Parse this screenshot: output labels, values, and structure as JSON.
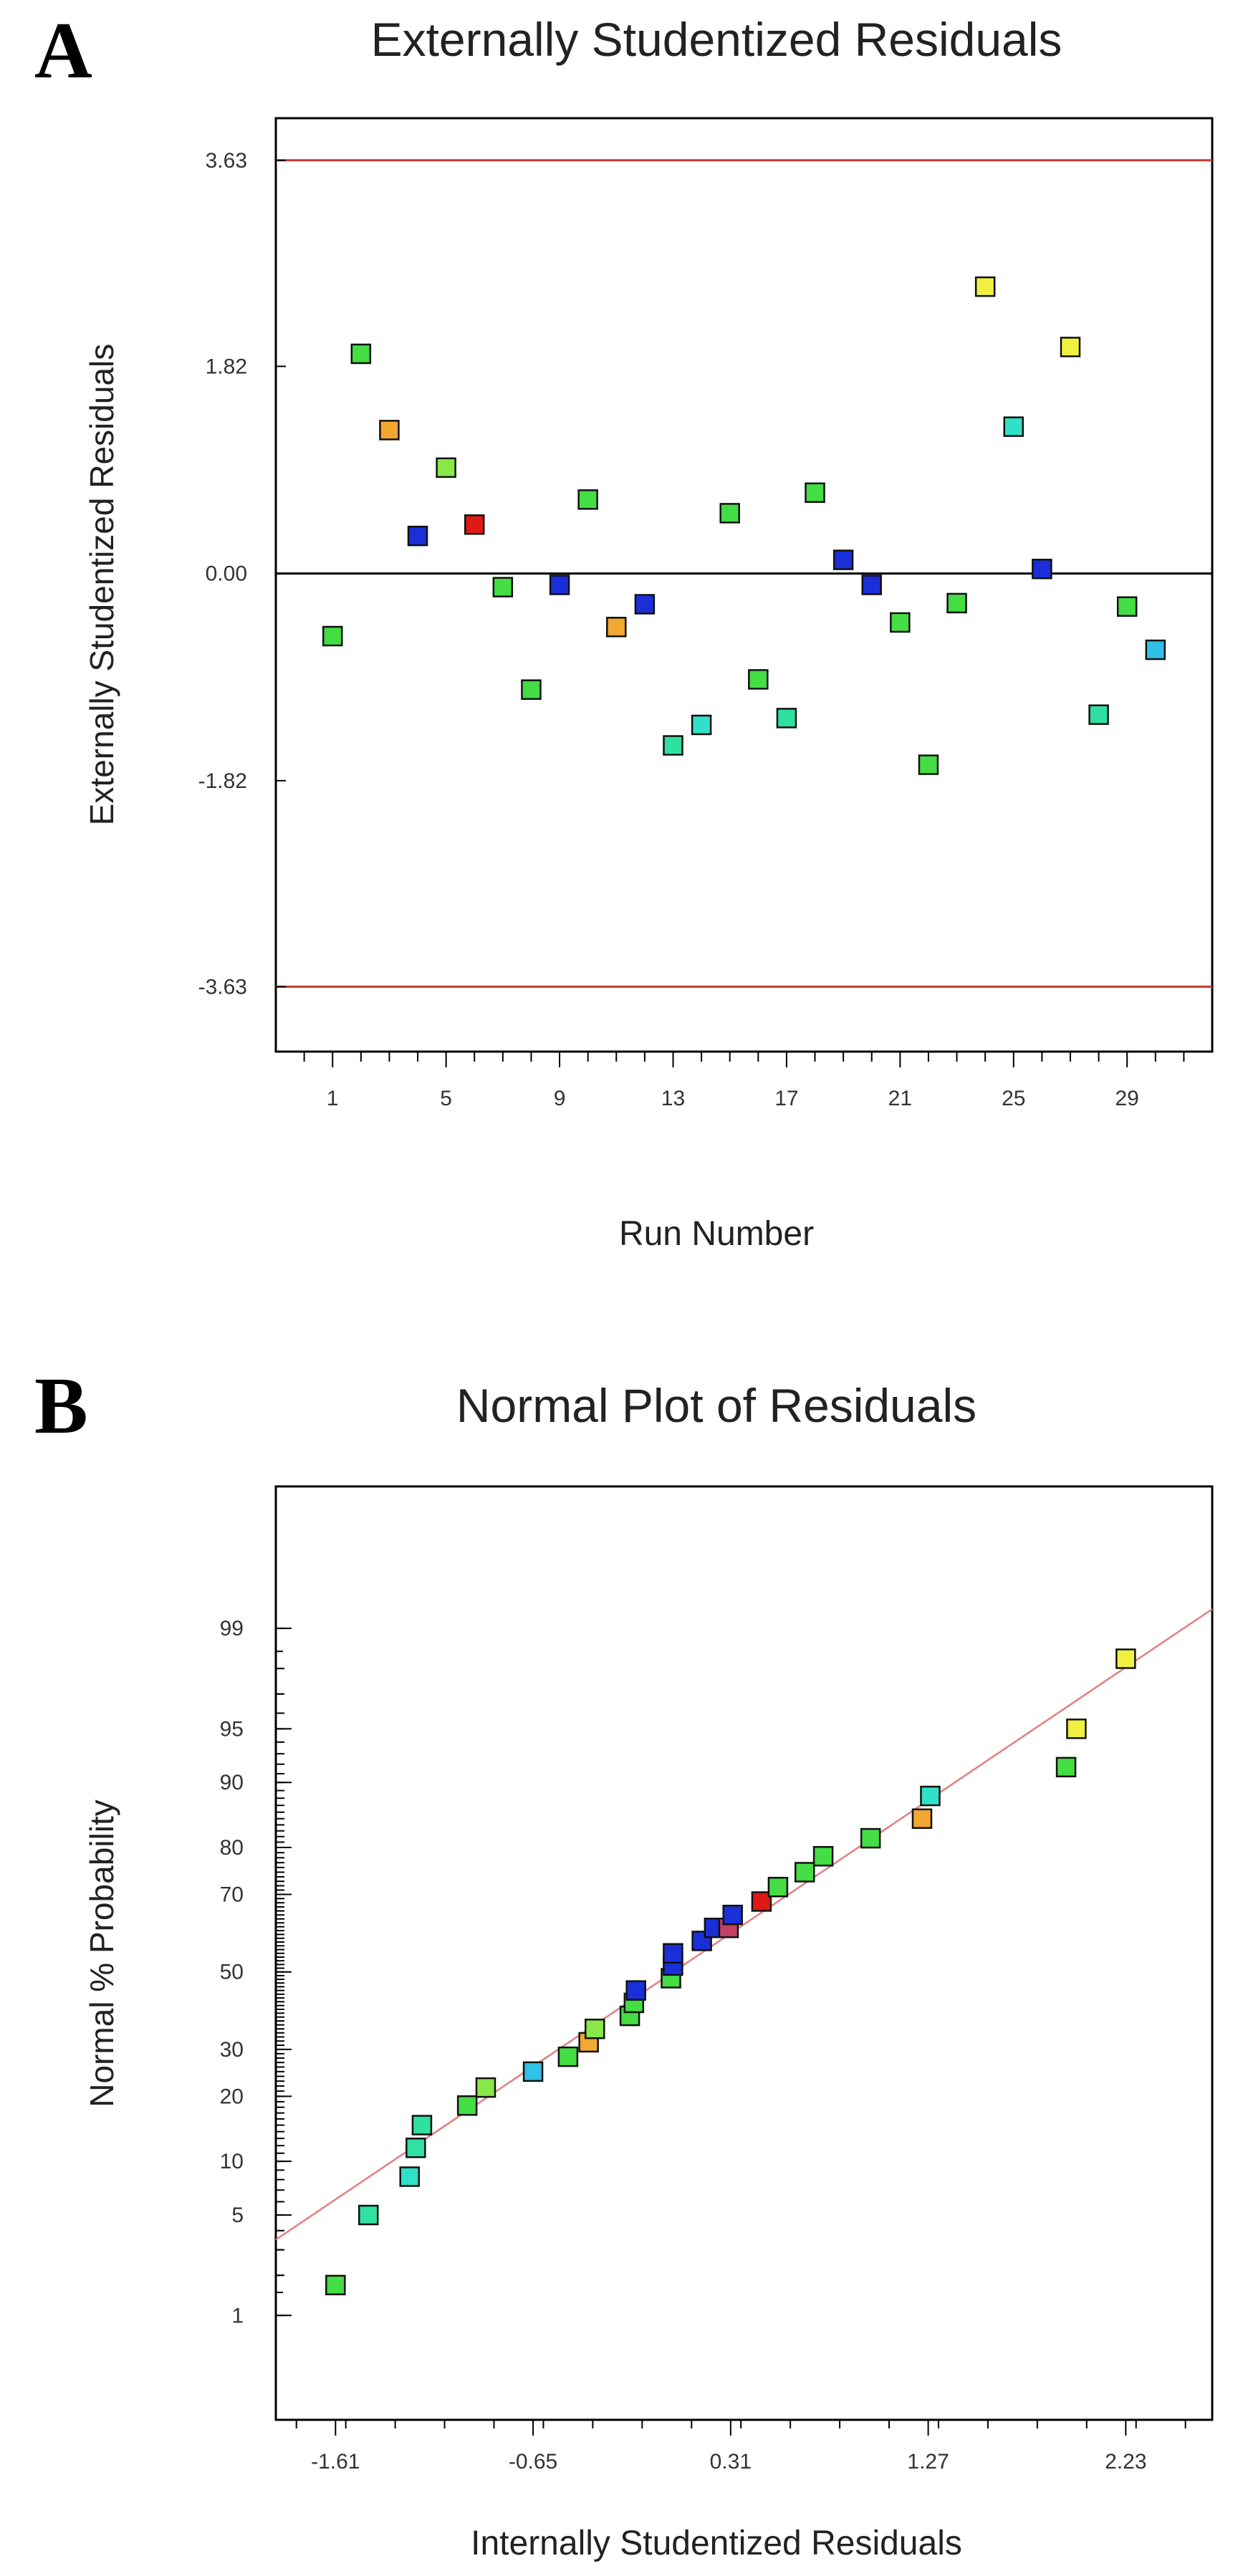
{
  "panel_a_letter": "A",
  "panel_b_letter": "B",
  "chart_data": [
    {
      "type": "scatter",
      "title": "Externally Studentized Residuals",
      "xlabel": "Run Number",
      "ylabel": "Externally Studentized Residuals",
      "xlim": [
        -1,
        32
      ],
      "ylim": [
        -4.2,
        4.0
      ],
      "x_ticks": [
        1,
        5,
        9,
        13,
        17,
        21,
        25,
        29
      ],
      "y_ticks": [
        3.63,
        1.82,
        0.0,
        -1.82,
        -3.63
      ],
      "y_tick_labels": [
        "3.63",
        "1.82",
        "0.00",
        "-1.82",
        "-3.63"
      ],
      "limit_lines": [
        3.63,
        -3.63
      ],
      "zero_line": 0,
      "limit_color": "#c0392b",
      "points": [
        {
          "x": 1,
          "y": -0.55,
          "color": "#44dd44"
        },
        {
          "x": 2,
          "y": 1.93,
          "color": "#44dd44"
        },
        {
          "x": 3,
          "y": 1.26,
          "color": "#f0a830"
        },
        {
          "x": 4,
          "y": 0.33,
          "color": "#1a2fd8"
        },
        {
          "x": 5,
          "y": 0.93,
          "color": "#88e848"
        },
        {
          "x": 6,
          "y": 0.43,
          "color": "#e01818"
        },
        {
          "x": 7,
          "y": -0.12,
          "color": "#44dd44"
        },
        {
          "x": 8,
          "y": -1.02,
          "color": "#44dd44"
        },
        {
          "x": 9,
          "y": -0.1,
          "color": "#1a2fd8"
        },
        {
          "x": 10,
          "y": 0.65,
          "color": "#44dd44"
        },
        {
          "x": 11,
          "y": -0.47,
          "color": "#f0a830"
        },
        {
          "x": 12,
          "y": -0.27,
          "color": "#1a2fd8"
        },
        {
          "x": 13,
          "y": -1.51,
          "color": "#30e0a0"
        },
        {
          "x": 14,
          "y": -1.33,
          "color": "#30e0c8"
        },
        {
          "x": 15,
          "y": 0.53,
          "color": "#44dd44"
        },
        {
          "x": 16,
          "y": -0.93,
          "color": "#44dd44"
        },
        {
          "x": 17,
          "y": -1.27,
          "color": "#30e0a0"
        },
        {
          "x": 18,
          "y": 0.71,
          "color": "#44dd44"
        },
        {
          "x": 19,
          "y": 0.12,
          "color": "#1a2fd8"
        },
        {
          "x": 20,
          "y": -0.1,
          "color": "#1a2fd8"
        },
        {
          "x": 21,
          "y": -0.43,
          "color": "#44dd44"
        },
        {
          "x": 22,
          "y": -1.68,
          "color": "#44dd44"
        },
        {
          "x": 23,
          "y": -0.26,
          "color": "#44dd44"
        },
        {
          "x": 24,
          "y": 2.52,
          "color": "#f0f040"
        },
        {
          "x": 25,
          "y": 1.29,
          "color": "#30e0c8"
        },
        {
          "x": 26,
          "y": 0.04,
          "color": "#1a2fd8"
        },
        {
          "x": 27,
          "y": 1.99,
          "color": "#f0f040"
        },
        {
          "x": 28,
          "y": -1.24,
          "color": "#30e0a0"
        },
        {
          "x": 29,
          "y": -0.29,
          "color": "#44dd44"
        },
        {
          "x": 30,
          "y": -0.67,
          "color": "#30c0e8"
        }
      ]
    },
    {
      "type": "scatter",
      "title": "Normal Plot of Residuals",
      "xlabel": "Internally Studentized Residuals",
      "ylabel": "Normal % Probability",
      "xlim": [
        -1.9,
        2.65
      ],
      "x_ticks": [
        -1.61,
        -0.65,
        0.31,
        1.27,
        2.23
      ],
      "x_tick_labels": [
        "-1.61",
        "-0.65",
        "0.31",
        "1.27",
        "2.23"
      ],
      "y_scale": "probability",
      "y_ticks": [
        1,
        5,
        10,
        20,
        30,
        50,
        70,
        80,
        90,
        95,
        99
      ],
      "y_tick_labels": [
        "1",
        "5",
        "10",
        "20",
        "30",
        "50",
        "70",
        "80",
        "90",
        "95",
        "99"
      ],
      "ylim_probability": [
        0.12,
        99.95
      ],
      "reference_line": {
        "x": [
          -1.9,
          2.65
        ],
        "p": [
          3.5,
          99.3
        ],
        "color": "#e08080"
      },
      "points": [
        {
          "x": -1.61,
          "p": 1.7,
          "color": "#44dd44"
        },
        {
          "x": -1.45,
          "p": 5.0,
          "color": "#30e0a0"
        },
        {
          "x": -1.25,
          "p": 8.3,
          "color": "#30e0c8"
        },
        {
          "x": -1.22,
          "p": 11.7,
          "color": "#30e0a0"
        },
        {
          "x": -1.19,
          "p": 15.0,
          "color": "#30e0a0"
        },
        {
          "x": -0.97,
          "p": 18.3,
          "color": "#44dd44"
        },
        {
          "x": -0.88,
          "p": 21.7,
          "color": "#88e848"
        },
        {
          "x": -0.65,
          "p": 25.0,
          "color": "#30c0e8"
        },
        {
          "x": -0.48,
          "p": 28.3,
          "color": "#44dd44"
        },
        {
          "x": -0.38,
          "p": 31.7,
          "color": "#f0a830"
        },
        {
          "x": -0.35,
          "p": 35.0,
          "color": "#88e848"
        },
        {
          "x": -0.18,
          "p": 38.3,
          "color": "#44dd44"
        },
        {
          "x": -0.16,
          "p": 41.7,
          "color": "#44dd44"
        },
        {
          "x": -0.15,
          "p": 45.0,
          "color": "#1a2fd8"
        },
        {
          "x": 0.02,
          "p": 48.3,
          "color": "#44dd44"
        },
        {
          "x": 0.03,
          "p": 51.7,
          "color": "#1a2fd8"
        },
        {
          "x": 0.03,
          "p": 55.0,
          "color": "#1a2fd8"
        },
        {
          "x": 0.17,
          "p": 58.3,
          "color": "#1a2fd8"
        },
        {
          "x": 0.23,
          "p": 61.7,
          "color": "#1a2fd8"
        },
        {
          "x": 0.3,
          "p": 61.7,
          "color": "#c04060"
        },
        {
          "x": 0.32,
          "p": 65.0,
          "color": "#1a2fd8"
        },
        {
          "x": 0.46,
          "p": 68.3,
          "color": "#e01818"
        },
        {
          "x": 0.54,
          "p": 71.7,
          "color": "#44dd44"
        },
        {
          "x": 0.67,
          "p": 75.0,
          "color": "#44dd44"
        },
        {
          "x": 0.76,
          "p": 78.3,
          "color": "#44dd44"
        },
        {
          "x": 0.99,
          "p": 81.7,
          "color": "#44dd44"
        },
        {
          "x": 1.24,
          "p": 85.0,
          "color": "#f0a830"
        },
        {
          "x": 1.28,
          "p": 88.3,
          "color": "#30e0c8"
        },
        {
          "x": 1.94,
          "p": 91.7,
          "color": "#44dd44"
        },
        {
          "x": 1.99,
          "p": 95.0,
          "color": "#f0f040"
        },
        {
          "x": 2.23,
          "p": 98.3,
          "color": "#f0f040"
        }
      ]
    }
  ]
}
